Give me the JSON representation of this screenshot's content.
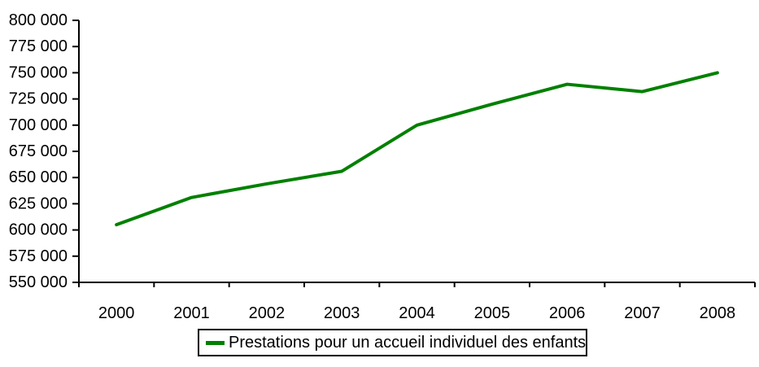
{
  "chart_data": {
    "type": "line",
    "title": "",
    "xlabel": "",
    "ylabel": "",
    "categories": [
      "2000",
      "2001",
      "2002",
      "2003",
      "2004",
      "2005",
      "2006",
      "2007",
      "2008"
    ],
    "series": [
      {
        "name": "Prestations pour un accueil individuel des enfants",
        "color": "#008000",
        "values": [
          605000,
          631000,
          644000,
          656000,
          700000,
          720000,
          739000,
          732000,
          750000
        ]
      }
    ],
    "ylim": [
      550000,
      800000
    ],
    "ytick_step": 25000,
    "ytick_labels": [
      "550 000",
      "575 000",
      "600 000",
      "625 000",
      "650 000",
      "675 000",
      "700 000",
      "725 000",
      "750 000",
      "775 000",
      "800 000"
    ],
    "grid": false,
    "legend_position": "bottom",
    "thousands_separator": " "
  },
  "colors": {
    "axis": "#000000",
    "text": "#000000",
    "background": "#FFFFFF",
    "legend_border": "#000000"
  }
}
